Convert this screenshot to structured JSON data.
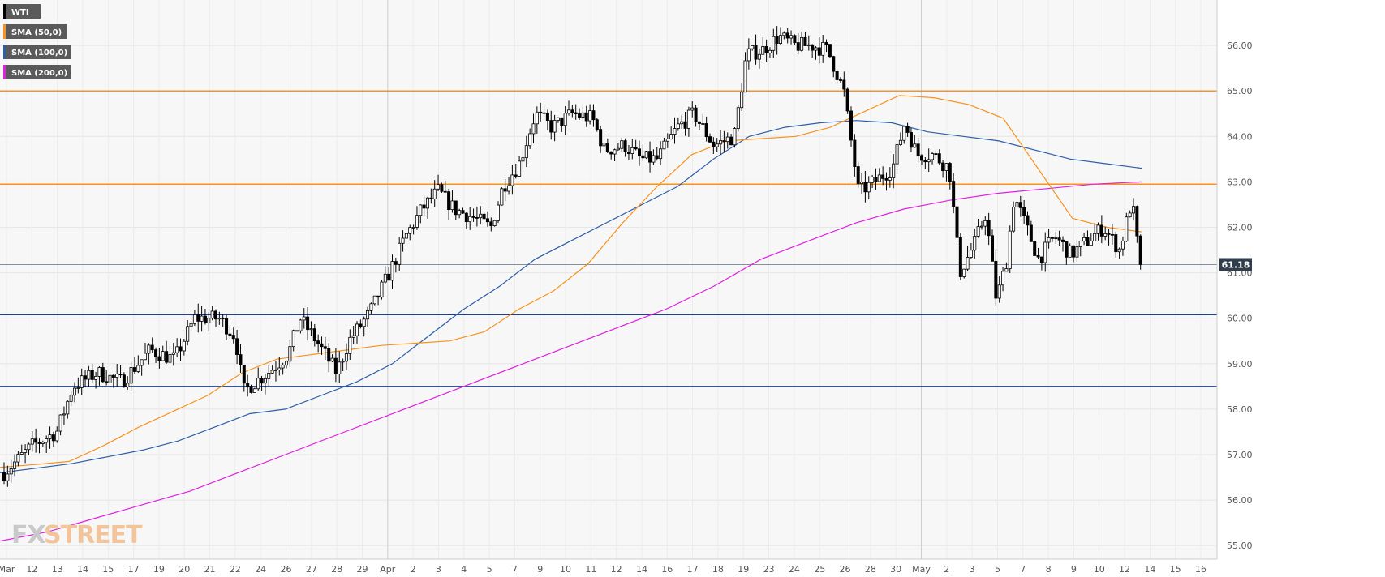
{
  "chart_data": {
    "type": "candlestick",
    "instrument": "WTI",
    "ylim": [
      54.7,
      67.0
    ],
    "yticks": [
      "55.00",
      "56.00",
      "57.00",
      "58.00",
      "59.00",
      "60.00",
      "61.00",
      "62.00",
      "63.00",
      "64.00",
      "65.00",
      "66.00"
    ],
    "xticks": [
      "Mar",
      "12",
      "13",
      "14",
      "15",
      "17",
      "19",
      "20",
      "21",
      "22",
      "24",
      "26",
      "27",
      "28",
      "29",
      "Apr",
      "2",
      "3",
      "4",
      "5",
      "7",
      "9",
      "10",
      "11",
      "12",
      "14",
      "16",
      "17",
      "18",
      "19",
      "23",
      "24",
      "25",
      "26",
      "28",
      "30",
      "May",
      "2",
      "3",
      "5",
      "7",
      "8",
      "9",
      "10",
      "12",
      "14",
      "15",
      "16"
    ],
    "x_separators": [
      "Apr",
      "May"
    ],
    "legend": [
      {
        "label": "WTI",
        "color": "#000000"
      },
      {
        "label": "SMA (50,0)",
        "color": "#f7931e"
      },
      {
        "label": "SMA (100,0)",
        "color": "#2b5ea8"
      },
      {
        "label": "SMA (200,0)",
        "color": "#e020e0"
      }
    ],
    "horizontal_levels": [
      {
        "value": 65.0,
        "color": "#f7931e"
      },
      {
        "value": 62.95,
        "color": "#f7931e"
      },
      {
        "value": 60.08,
        "color": "#1a3f8c"
      },
      {
        "value": 58.5,
        "color": "#1a3f8c"
      }
    ],
    "last_price": {
      "value": 61.18,
      "label": "61.18"
    },
    "candles": [],
    "sma50": [
      56.72,
      56.78,
      56.85,
      57.2,
      57.6,
      57.95,
      58.3,
      58.8,
      59.1,
      59.2,
      59.3,
      59.4,
      59.45,
      59.5,
      59.7,
      60.2,
      60.6,
      61.2,
      62.1,
      62.9,
      63.6,
      63.9,
      63.95,
      64.0,
      64.2,
      64.55,
      64.9,
      64.85,
      64.7,
      64.4,
      63.3,
      62.2,
      62.0,
      61.9
    ],
    "sma100": [
      56.6,
      56.7,
      56.8,
      56.95,
      57.1,
      57.3,
      57.6,
      57.9,
      58.0,
      58.3,
      58.6,
      59.0,
      59.6,
      60.2,
      60.7,
      61.3,
      61.7,
      62.1,
      62.5,
      62.9,
      63.5,
      64.0,
      64.2,
      64.3,
      64.35,
      64.3,
      64.1,
      64.0,
      63.9,
      63.7,
      63.5,
      63.4,
      63.3
    ],
    "sma200": [
      55.1,
      55.3,
      55.6,
      55.9,
      56.2,
      56.6,
      57.0,
      57.4,
      57.8,
      58.2,
      58.6,
      59.0,
      59.4,
      59.8,
      60.2,
      60.7,
      61.3,
      61.7,
      62.1,
      62.4,
      62.6,
      62.75,
      62.85,
      62.95,
      63.0
    ]
  },
  "watermark": {
    "brand_a": "FX",
    "brand_b": "STREET"
  }
}
